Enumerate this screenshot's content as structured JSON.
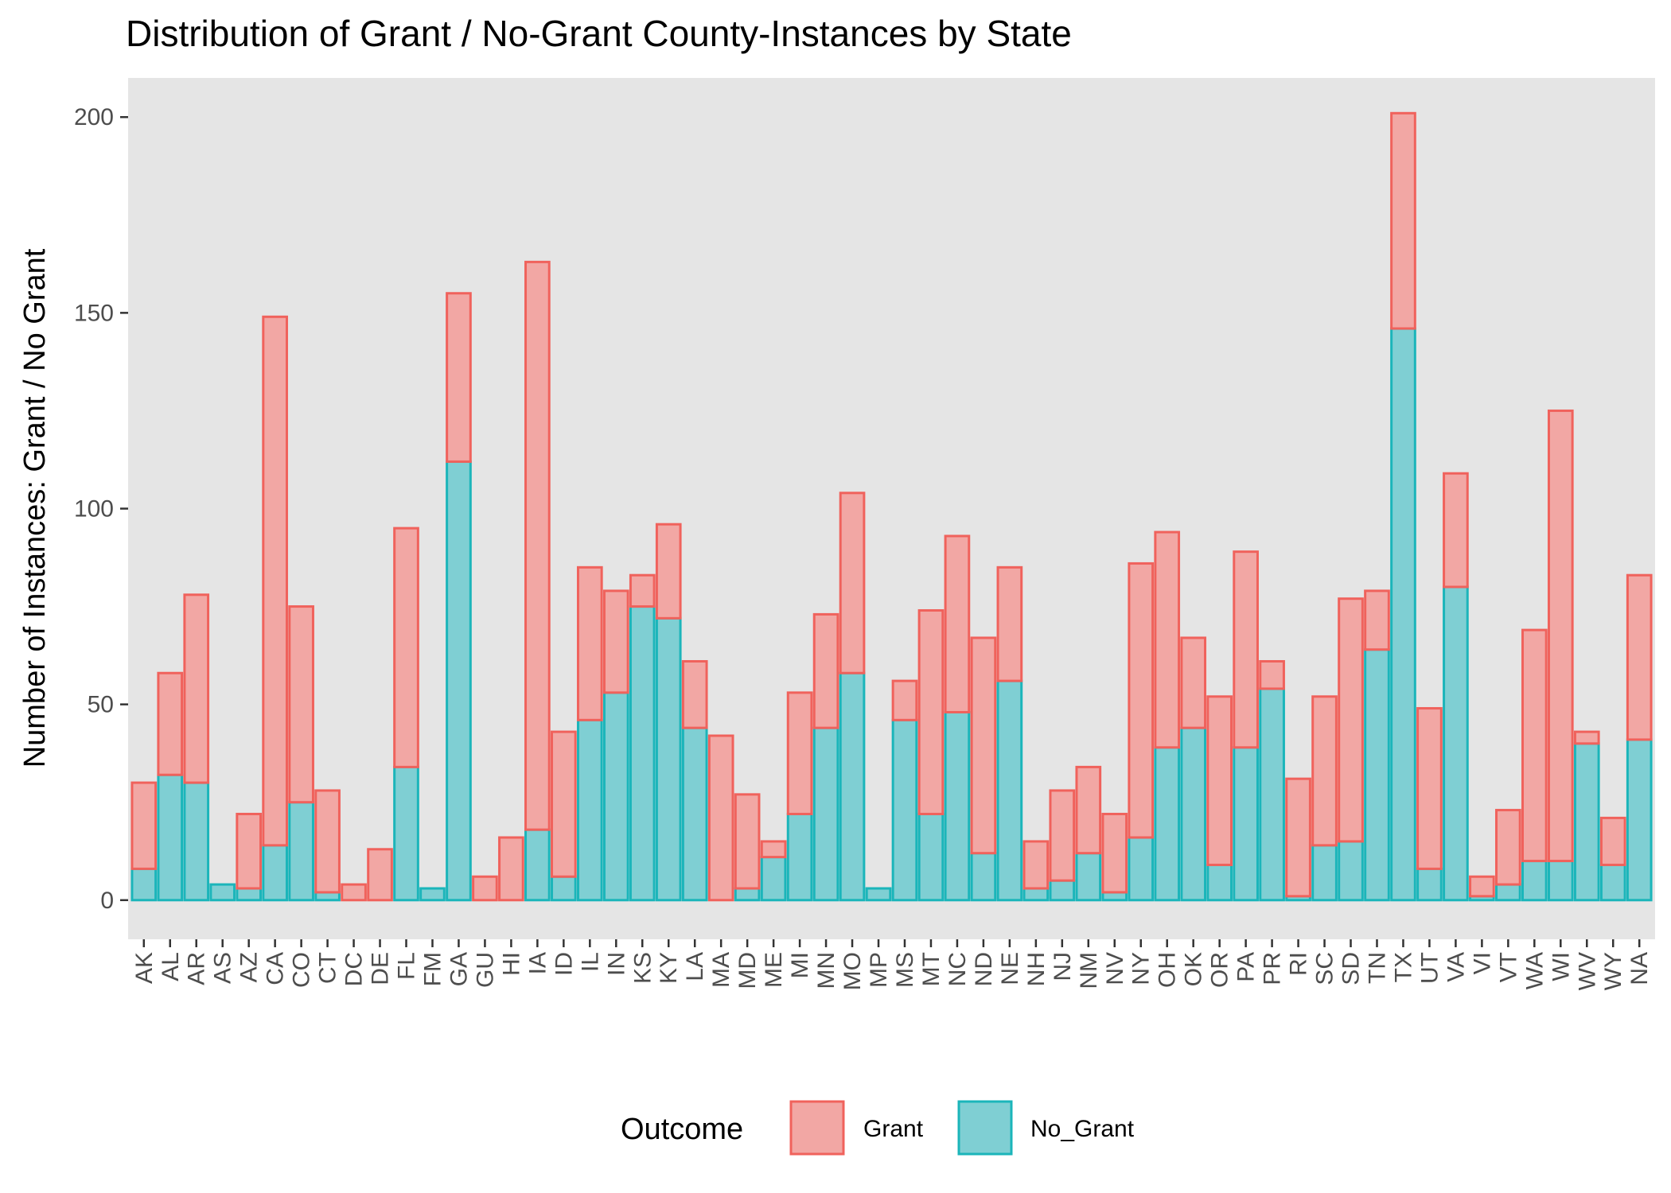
{
  "chart_data": {
    "type": "bar",
    "stacked": true,
    "title": "Distribution of Grant / No-Grant County-Instances by State",
    "xlabel": "",
    "ylabel": "Number of Instances: Grant / No Grant",
    "ylim": [
      -10,
      210
    ],
    "yticks": [
      0,
      50,
      100,
      150,
      200
    ],
    "grid": false,
    "legend": {
      "title": "Outcome",
      "position": "bottom"
    },
    "categories": [
      "AK",
      "AL",
      "AR",
      "AS",
      "AZ",
      "CA",
      "CO",
      "CT",
      "DC",
      "DE",
      "FL",
      "FM",
      "GA",
      "GU",
      "HI",
      "IA",
      "ID",
      "IL",
      "IN",
      "KS",
      "KY",
      "LA",
      "MA",
      "MD",
      "ME",
      "MI",
      "MN",
      "MO",
      "MP",
      "MS",
      "MT",
      "NC",
      "ND",
      "NE",
      "NH",
      "NJ",
      "NM",
      "NV",
      "NY",
      "OH",
      "OK",
      "OR",
      "PA",
      "PR",
      "RI",
      "SC",
      "SD",
      "TN",
      "TX",
      "UT",
      "VA",
      "VI",
      "VT",
      "WA",
      "WI",
      "WV",
      "WY",
      "NA"
    ],
    "series": [
      {
        "name": "Grant",
        "fill": "#F2A7A4",
        "stroke": "#F0625C",
        "values": [
          22,
          26,
          48,
          0,
          19,
          135,
          50,
          26,
          4,
          13,
          61,
          0,
          43,
          6,
          16,
          145,
          37,
          39,
          26,
          8,
          24,
          17,
          42,
          24,
          4,
          31,
          29,
          46,
          0,
          10,
          52,
          45,
          55,
          29,
          12,
          23,
          22,
          20,
          70,
          55,
          23,
          43,
          50,
          7,
          30,
          38,
          62,
          15,
          55,
          41,
          29,
          5,
          19,
          59,
          115,
          3,
          12,
          42
        ]
      },
      {
        "name": "No_Grant",
        "fill": "#7FCFD3",
        "stroke": "#1BB5BA",
        "values": [
          8,
          32,
          30,
          4,
          3,
          14,
          25,
          2,
          0,
          0,
          34,
          3,
          112,
          0,
          0,
          18,
          6,
          46,
          53,
          75,
          72,
          44,
          0,
          3,
          11,
          22,
          44,
          58,
          3,
          46,
          22,
          48,
          12,
          56,
          3,
          5,
          12,
          2,
          16,
          39,
          44,
          9,
          39,
          54,
          1,
          14,
          15,
          64,
          146,
          8,
          80,
          1,
          4,
          10,
          10,
          40,
          9,
          41
        ]
      }
    ]
  }
}
